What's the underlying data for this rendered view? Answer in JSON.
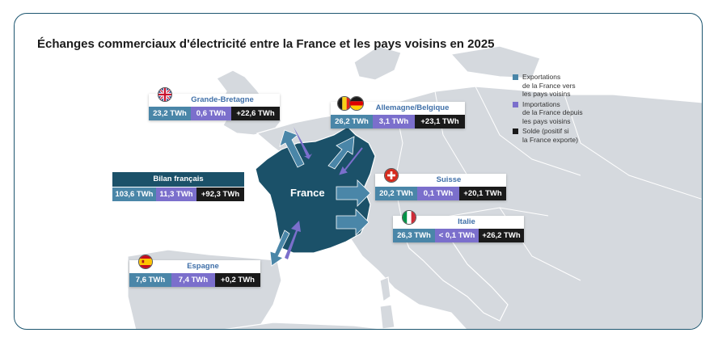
{
  "title": "Échanges commerciaux d'électricité entre la France et les pays voisins en 2025",
  "center_label": "France",
  "colors": {
    "export": "#4a86a8",
    "import": "#7b6fcc",
    "solde": "#1a1a1a",
    "france": "#1b5169"
  },
  "legend": [
    {
      "label": "Exportations de la France vers les pays voisins",
      "lines": [
        "Exportations",
        "de la France vers",
        "les pays voisins"
      ],
      "color": "#4a86a8"
    },
    {
      "label": "Importations de la France depuis les pays voisins",
      "lines": [
        "Importations",
        "de la France depuis",
        "les pays voisins"
      ],
      "color": "#7b6fcc"
    },
    {
      "label": "Solde (positif si la France exporte)",
      "lines": [
        "Solde (positif si",
        "la France exporte)"
      ],
      "color": "#1a1a1a"
    }
  ],
  "bilan": {
    "label": "Bilan français",
    "exports": "103,6 TWh",
    "imports": "11,3 TWh",
    "solde": "+92,3 TWh"
  },
  "countries": [
    {
      "name": "Grande-Bretagne",
      "flag": "uk-flag-icon",
      "exports": "23,2 TWh",
      "imports": "0,6 TWh",
      "solde": "+22,6 TWh"
    },
    {
      "name": "Allemagne/Belgique",
      "flag": "belgium-germany-flag-icon",
      "exports": "26,2 TWh",
      "imports": "3,1 TWh",
      "solde": "+23,1 TWh"
    },
    {
      "name": "Suisse",
      "flag": "swiss-flag-icon",
      "exports": "20,2 TWh",
      "imports": "0,1 TWh",
      "solde": "+20,1 TWh"
    },
    {
      "name": "Italie",
      "flag": "italy-flag-icon",
      "exports": "26,3 TWh",
      "imports": "< 0,1 TWh",
      "solde": "+26,2 TWh"
    },
    {
      "name": "Espagne",
      "flag": "spain-flag-icon",
      "exports": "7,6 TWh",
      "imports": "7,4 TWh",
      "solde": "+0,2 TWh"
    }
  ]
}
